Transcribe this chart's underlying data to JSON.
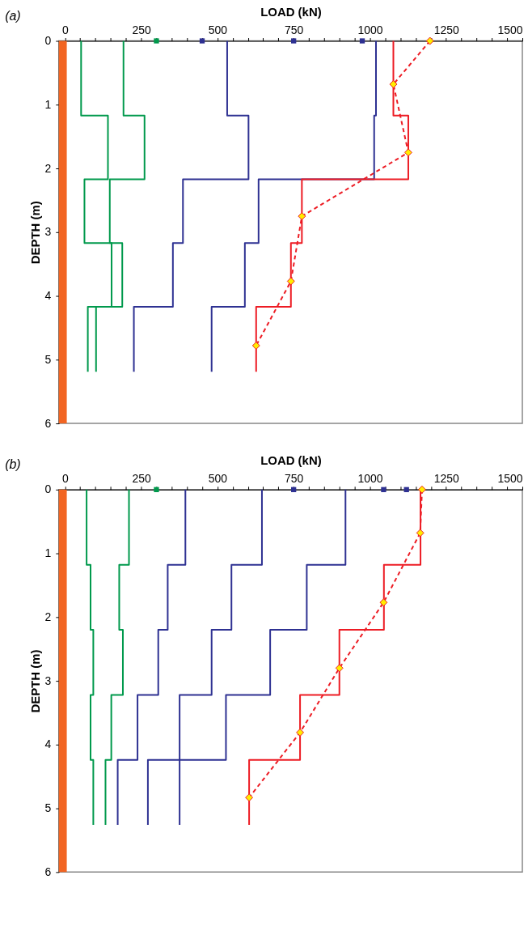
{
  "chart_data": [
    {
      "type": "line",
      "title": "(a)",
      "xlabel": "LOAD  (kN)",
      "ylabel": "DEPTH  (m)",
      "xlim": [
        -20,
        1500
      ],
      "xticks": [
        0,
        {
          "value": 50,
          "label": null
        },
        {
          "value": 100,
          "label": null
        },
        {
          "value": 150,
          "label": null
        },
        {
          "value": 200,
          "label": null
        },
        250,
        {
          "value": 300,
          "label": null
        },
        {
          "value": 350,
          "label": null
        },
        {
          "value": 400,
          "label": null
        },
        {
          "value": 450,
          "label": null
        },
        500,
        {
          "value": 550,
          "label": null
        },
        {
          "value": 600,
          "label": null
        },
        {
          "value": 650,
          "label": null
        },
        {
          "value": 700,
          "label": null
        },
        750,
        {
          "value": 800,
          "label": null
        },
        {
          "value": 850,
          "label": null
        },
        {
          "value": 900,
          "label": null
        },
        {
          "value": 950,
          "label": null
        },
        1000,
        {
          "value": 1050,
          "label": null
        },
        {
          "value": 1100,
          "label": null
        },
        {
          "value": 1150,
          "label": null
        },
        {
          "value": 1200,
          "label": null
        },
        1250,
        {
          "value": 1300,
          "label": null
        },
        {
          "value": 1350,
          "label": null
        },
        {
          "value": 1400,
          "label": null
        },
        {
          "value": 1450,
          "label": null
        },
        1500
      ],
      "ylim": [
        6,
        0
      ],
      "yticks": [
        0,
        1,
        2,
        3,
        4,
        5,
        6
      ],
      "bands": [
        {
          "axis": "x",
          "from": -20,
          "to": 6,
          "color": "#f26522"
        }
      ],
      "series": [
        {
          "color": "#00994c",
          "x": [
            53,
            53,
            141,
            141,
            64,
            64,
            153,
            153,
            75,
            75
          ],
          "values": [
            0,
            1.17,
            1.17,
            2.17,
            2.17,
            3.17,
            3.17,
            4.17,
            4.17,
            5.19
          ]
        },
        {
          "color": "#00994c",
          "x": [
            192,
            192,
            261,
            261,
            147,
            147,
            188,
            188,
            102,
            102
          ],
          "values": [
            0,
            1.17,
            1.17,
            2.17,
            2.17,
            3.17,
            3.17,
            4.17,
            4.17,
            5.19
          ]
        },
        {
          "color": "#2e3192",
          "x": [
            532,
            532,
            602,
            602,
            387,
            387,
            354,
            354,
            226,
            226
          ],
          "values": [
            0,
            1.17,
            1.17,
            2.17,
            2.17,
            3.17,
            3.17,
            4.17,
            4.17,
            5.19
          ]
        },
        {
          "color": "#2e3192",
          "x": [
            1020,
            1020,
            1014,
            1014,
            635,
            635,
            590,
            590,
            481,
            481
          ],
          "values": [
            0,
            1.17,
            1.17,
            2.17,
            2.17,
            3.17,
            3.17,
            4.17,
            4.17,
            5.19
          ]
        },
        {
          "color": "#ed1c24",
          "x": [
            1077,
            1077,
            1126,
            1126,
            777,
            777,
            741,
            741,
            627,
            627
          ],
          "values": [
            0,
            1.17,
            1.17,
            2.17,
            2.17,
            3.17,
            3.17,
            4.17,
            4.17,
            5.19
          ]
        },
        {
          "color": "#ed1c24",
          "line_style": "dashed",
          "marker": "diamond",
          "colors": [
            "#ffed00",
            "#ffed00",
            "#ffed00",
            "#ffed00",
            "#ffed00",
            "#ffed00"
          ],
          "x": [
            1197,
            1077,
            1126,
            777,
            741,
            627
          ],
          "values": [
            0,
            0.68,
            1.75,
            2.75,
            3.77,
            4.78
          ]
        },
        {
          "type": "scatter",
          "color": "#00994c",
          "marker": "square",
          "x": [
            300
          ],
          "values": [
            0
          ]
        },
        {
          "type": "scatter",
          "color": "#2e3192",
          "marker": "square",
          "x": [
            450,
            750,
            975
          ],
          "values": [
            0,
            0,
            0
          ]
        }
      ]
    },
    {
      "type": "line",
      "title": "(b)",
      "xlabel": "LOAD  (kN)",
      "ylabel": "DEPTH  (m)",
      "xlim": [
        -20,
        1500
      ],
      "xticks": [
        0,
        {
          "value": 50,
          "label": null
        },
        {
          "value": 100,
          "label": null
        },
        {
          "value": 150,
          "label": null
        },
        {
          "value": 200,
          "label": null
        },
        250,
        {
          "value": 300,
          "label": null
        },
        {
          "value": 350,
          "label": null
        },
        {
          "value": 400,
          "label": null
        },
        {
          "value": 450,
          "label": null
        },
        500,
        {
          "value": 550,
          "label": null
        },
        {
          "value": 600,
          "label": null
        },
        {
          "value": 650,
          "label": null
        },
        {
          "value": 700,
          "label": null
        },
        750,
        {
          "value": 800,
          "label": null
        },
        {
          "value": 850,
          "label": null
        },
        {
          "value": 900,
          "label": null
        },
        {
          "value": 950,
          "label": null
        },
        1000,
        {
          "value": 1050,
          "label": null
        },
        {
          "value": 1100,
          "label": null
        },
        {
          "value": 1150,
          "label": null
        },
        {
          "value": 1200,
          "label": null
        },
        1250,
        {
          "value": 1300,
          "label": null
        },
        {
          "value": 1350,
          "label": null
        },
        {
          "value": 1400,
          "label": null
        },
        {
          "value": 1450,
          "label": null
        },
        1500
      ],
      "ylim": [
        6,
        0
      ],
      "yticks": [
        0,
        1,
        2,
        3,
        4,
        5,
        6
      ],
      "bands": [
        {
          "axis": "x",
          "from": -20,
          "to": 6,
          "color": "#f26522"
        }
      ],
      "series": [
        {
          "color": "#00994c",
          "x": [
            71,
            71,
            84,
            84,
            93,
            93,
            84,
            84,
            93,
            93
          ],
          "values": [
            0,
            1.18,
            1.18,
            2.2,
            2.2,
            3.22,
            3.22,
            4.24,
            4.24,
            5.26
          ]
        },
        {
          "color": "#00994c",
          "x": [
            210,
            210,
            178,
            178,
            190,
            190,
            152,
            152,
            133,
            133
          ],
          "values": [
            0,
            1.18,
            1.18,
            2.2,
            2.2,
            3.22,
            3.22,
            4.24,
            4.24,
            5.26
          ]
        },
        {
          "color": "#2e3192",
          "x": [
            395,
            395,
            337,
            337,
            306,
            306,
            238,
            238,
            173,
            173
          ],
          "values": [
            0,
            1.18,
            1.18,
            2.2,
            2.2,
            3.22,
            3.22,
            4.24,
            4.24,
            5.26
          ]
        },
        {
          "color": "#2e3192",
          "x": [
            646,
            646,
            546,
            546,
            481,
            481,
            376,
            376
          ],
          "values": [
            0,
            1.18,
            1.18,
            2.2,
            2.2,
            3.22,
            3.22,
            5.26
          ]
        },
        {
          "color": "#2e3192",
          "x": [
            920,
            920,
            793,
            793,
            673,
            673,
            528,
            528,
            272,
            272
          ],
          "values": [
            0,
            1.18,
            1.18,
            2.2,
            2.2,
            3.22,
            3.22,
            4.24,
            4.24,
            5.26
          ]
        },
        {
          "color": "#ed1c24",
          "x": [
            1166,
            1166,
            1046,
            1046,
            900,
            900,
            771,
            771,
            604,
            604
          ],
          "values": [
            0,
            1.18,
            1.18,
            2.2,
            2.2,
            3.22,
            3.22,
            4.24,
            4.24,
            5.26
          ]
        },
        {
          "color": "#ed1c24",
          "line_style": "dashed",
          "marker": "diamond",
          "colors": [
            "#ffed00",
            "#ffed00",
            "#ffed00",
            "#ffed00",
            "#ffed00",
            "#ffed00"
          ],
          "x": [
            1171,
            1165,
            1045,
            900,
            771,
            604
          ],
          "values": [
            0,
            0.68,
            1.77,
            2.8,
            3.81,
            4.83
          ]
        },
        {
          "type": "scatter",
          "color": "#00994c",
          "marker": "square",
          "x": [
            300
          ],
          "values": [
            0
          ]
        },
        {
          "type": "scatter",
          "color": "#2e3192",
          "marker": "square",
          "x": [
            750,
            1045,
            1120
          ],
          "values": [
            0,
            0,
            0
          ]
        }
      ]
    }
  ]
}
